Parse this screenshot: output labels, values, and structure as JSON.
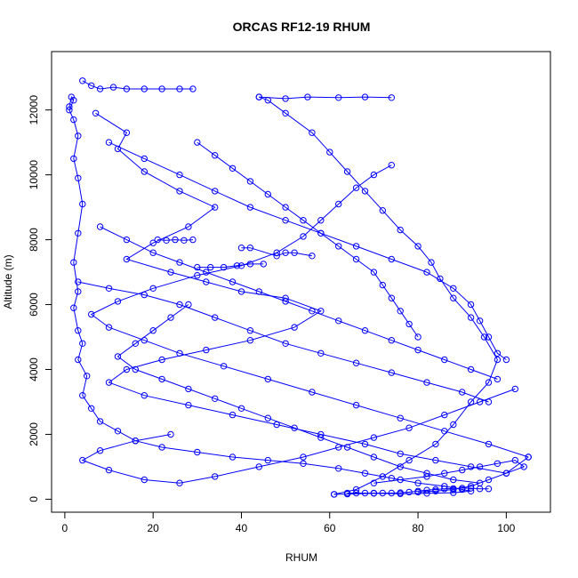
{
  "chart_data": {
    "type": "line",
    "title": "ORCAS RF12-19 RHUM",
    "xlabel": "RHUM",
    "ylabel": "Altitude (m)",
    "xlim": [
      -3,
      110
    ],
    "ylim": [
      -400,
      13800
    ],
    "x_ticks": [
      0,
      20,
      40,
      60,
      80,
      100
    ],
    "y_ticks": [
      0,
      2000,
      4000,
      6000,
      8000,
      10000,
      12000
    ],
    "grid": false,
    "legend": "none",
    "marker": "open-circle",
    "series_color": "#0000ff",
    "series": [
      {
        "values": [
          [
            1,
            12100
          ],
          [
            1.5,
            12400
          ],
          [
            2,
            12300
          ],
          [
            1,
            12000
          ],
          [
            2,
            11700
          ],
          [
            3,
            11200
          ],
          [
            2,
            10500
          ],
          [
            3,
            9900
          ],
          [
            4,
            9100
          ],
          [
            3,
            8200
          ],
          [
            2,
            7300
          ],
          [
            3,
            6400
          ],
          [
            2,
            5900
          ],
          [
            3,
            5200
          ],
          [
            4,
            4800
          ],
          [
            3,
            4300
          ],
          [
            5,
            3800
          ],
          [
            4,
            3200
          ],
          [
            6,
            2800
          ],
          [
            8,
            2400
          ],
          [
            12,
            2100
          ],
          [
            16,
            1800
          ],
          [
            22,
            1600
          ],
          [
            30,
            1450
          ],
          [
            38,
            1300
          ],
          [
            46,
            1200
          ],
          [
            54,
            1100
          ],
          [
            62,
            950
          ],
          [
            68,
            800
          ],
          [
            74,
            650
          ],
          [
            80,
            500
          ],
          [
            86,
            400
          ],
          [
            90,
            300
          ],
          [
            92,
            250
          ],
          [
            88,
            200
          ],
          [
            82,
            180
          ],
          [
            76,
            170
          ],
          [
            70,
            180
          ],
          [
            64,
            160
          ],
          [
            61,
            150
          ]
        ]
      },
      {
        "values": [
          [
            61,
            150
          ],
          [
            66,
            300
          ],
          [
            72,
            700
          ],
          [
            78,
            1200
          ],
          [
            84,
            1700
          ],
          [
            88,
            2300
          ],
          [
            92,
            3000
          ],
          [
            96,
            3600
          ],
          [
            98,
            4300
          ],
          [
            95,
            5000
          ],
          [
            92,
            5600
          ],
          [
            88,
            6200
          ],
          [
            85,
            6800
          ],
          [
            83,
            7300
          ],
          [
            80,
            7800
          ],
          [
            76,
            8300
          ],
          [
            72,
            8900
          ],
          [
            68,
            9500
          ],
          [
            64,
            10100
          ],
          [
            60,
            10700
          ],
          [
            56,
            11300
          ],
          [
            50,
            11900
          ],
          [
            46,
            12300
          ],
          [
            44,
            12400
          ]
        ]
      },
      {
        "values": [
          [
            44,
            12400
          ],
          [
            50,
            12350
          ],
          [
            55,
            12400
          ],
          [
            62,
            12380
          ],
          [
            68,
            12400
          ],
          [
            74,
            12380
          ]
        ]
      },
      {
        "values": [
          [
            4,
            12900
          ],
          [
            6,
            12750
          ],
          [
            8,
            12650
          ],
          [
            11,
            12700
          ],
          [
            14,
            12650
          ],
          [
            18,
            12650
          ],
          [
            22,
            12650
          ],
          [
            26,
            12650
          ],
          [
            29,
            12650
          ]
        ]
      },
      {
        "values": [
          [
            7,
            11900
          ],
          [
            14,
            11300
          ],
          [
            12,
            10800
          ],
          [
            18,
            10100
          ],
          [
            26,
            9500
          ],
          [
            34,
            9000
          ],
          [
            28,
            8400
          ],
          [
            20,
            7900
          ],
          [
            14,
            7400
          ],
          [
            24,
            7000
          ],
          [
            32,
            6700
          ],
          [
            40,
            6400
          ],
          [
            50,
            6200
          ],
          [
            58,
            5800
          ],
          [
            52,
            5300
          ],
          [
            42,
            4900
          ],
          [
            32,
            4600
          ],
          [
            22,
            4300
          ],
          [
            14,
            4000
          ],
          [
            10,
            3600
          ],
          [
            18,
            3200
          ],
          [
            28,
            2900
          ],
          [
            38,
            2600
          ],
          [
            48,
            2300
          ],
          [
            58,
            2000
          ],
          [
            68,
            1700
          ],
          [
            76,
            1400
          ],
          [
            84,
            1200
          ],
          [
            92,
            1000
          ],
          [
            100,
            800
          ],
          [
            105,
            1300
          ]
        ]
      },
      {
        "values": [
          [
            105,
            1300
          ],
          [
            96,
            1700
          ],
          [
            86,
            2100
          ],
          [
            76,
            2500
          ],
          [
            66,
            2900
          ],
          [
            56,
            3300
          ],
          [
            46,
            3700
          ],
          [
            36,
            4100
          ],
          [
            26,
            4500
          ],
          [
            18,
            4900
          ],
          [
            10,
            5300
          ],
          [
            6,
            5700
          ],
          [
            12,
            6100
          ],
          [
            20,
            6500
          ],
          [
            30,
            6900
          ],
          [
            40,
            7200
          ],
          [
            48,
            7600
          ],
          [
            54,
            8100
          ],
          [
            58,
            8600
          ],
          [
            62,
            9100
          ],
          [
            66,
            9600
          ],
          [
            70,
            10000
          ],
          [
            74,
            10300
          ]
        ]
      },
      {
        "values": [
          [
            21,
            8000
          ],
          [
            23,
            7980
          ],
          [
            25,
            8000
          ],
          [
            27,
            7980
          ],
          [
            29,
            8000
          ]
        ]
      },
      {
        "values": [
          [
            30,
            7150
          ],
          [
            33,
            7150
          ],
          [
            36,
            7150
          ],
          [
            39,
            7200
          ],
          [
            42,
            7250
          ],
          [
            45,
            7250
          ]
        ]
      },
      {
        "values": [
          [
            102,
            3400
          ],
          [
            94,
            3000
          ],
          [
            86,
            2600
          ],
          [
            78,
            2200
          ],
          [
            70,
            1900
          ],
          [
            62,
            1600
          ],
          [
            54,
            1300
          ],
          [
            44,
            1000
          ],
          [
            34,
            700
          ],
          [
            26,
            500
          ],
          [
            18,
            600
          ],
          [
            10,
            900
          ],
          [
            4,
            1200
          ],
          [
            8,
            1500
          ],
          [
            16,
            1800
          ],
          [
            24,
            2000
          ]
        ]
      },
      {
        "values": [
          [
            64,
            190
          ],
          [
            66,
            190
          ],
          [
            68,
            190
          ],
          [
            70,
            190
          ],
          [
            72,
            190
          ],
          [
            74,
            190
          ],
          [
            76,
            200
          ],
          [
            78,
            220
          ],
          [
            80,
            250
          ],
          [
            82,
            280
          ],
          [
            84,
            300
          ],
          [
            86,
            320
          ],
          [
            88,
            330
          ],
          [
            90,
            340
          ],
          [
            92,
            340
          ],
          [
            94,
            320
          ],
          [
            96,
            320
          ]
        ]
      },
      {
        "values": [
          [
            70,
            500
          ],
          [
            76,
            600
          ],
          [
            82,
            700
          ],
          [
            86,
            800
          ],
          [
            90,
            900
          ],
          [
            94,
            1000
          ],
          [
            98,
            1100
          ],
          [
            102,
            1200
          ],
          [
            104,
            1000
          ],
          [
            100,
            800
          ],
          [
            96,
            600
          ],
          [
            92,
            400
          ],
          [
            88,
            300
          ],
          [
            84,
            250
          ],
          [
            80,
            220
          ]
        ]
      },
      {
        "values": [
          [
            10,
            11000
          ],
          [
            18,
            10500
          ],
          [
            26,
            10000
          ],
          [
            34,
            9500
          ],
          [
            42,
            9000
          ],
          [
            50,
            8600
          ],
          [
            58,
            8200
          ],
          [
            66,
            7800
          ],
          [
            74,
            7400
          ],
          [
            82,
            7000
          ],
          [
            88,
            6500
          ],
          [
            92,
            6000
          ],
          [
            94,
            5500
          ],
          [
            96,
            5000
          ],
          [
            98,
            4500
          ],
          [
            100,
            4300
          ]
        ]
      },
      {
        "values": [
          [
            3,
            6700
          ],
          [
            10,
            6500
          ],
          [
            18,
            6300
          ],
          [
            26,
            6000
          ],
          [
            34,
            5600
          ],
          [
            42,
            5200
          ],
          [
            50,
            4800
          ],
          [
            58,
            4500
          ],
          [
            66,
            4200
          ],
          [
            74,
            3900
          ],
          [
            82,
            3600
          ],
          [
            90,
            3300
          ],
          [
            96,
            3000
          ]
        ]
      },
      {
        "values": [
          [
            30,
            11000
          ],
          [
            34,
            10600
          ],
          [
            38,
            10200
          ],
          [
            42,
            9800
          ],
          [
            46,
            9400
          ],
          [
            50,
            9000
          ],
          [
            54,
            8600
          ],
          [
            58,
            8200
          ],
          [
            62,
            7800
          ],
          [
            66,
            7400
          ],
          [
            70,
            7000
          ],
          [
            72,
            6600
          ],
          [
            74,
            6200
          ],
          [
            76,
            5800
          ],
          [
            78,
            5400
          ],
          [
            80,
            5000
          ]
        ]
      },
      {
        "values": [
          [
            8,
            8400
          ],
          [
            14,
            8000
          ],
          [
            20,
            7600
          ],
          [
            26,
            7300
          ],
          [
            32,
            7000
          ],
          [
            38,
            6700
          ],
          [
            44,
            6400
          ],
          [
            50,
            6100
          ],
          [
            56,
            5800
          ],
          [
            62,
            5500
          ],
          [
            68,
            5200
          ],
          [
            74,
            4900
          ],
          [
            80,
            4600
          ],
          [
            86,
            4300
          ],
          [
            92,
            4000
          ],
          [
            98,
            3700
          ]
        ]
      },
      {
        "values": [
          [
            40,
            7750
          ],
          [
            42,
            7750
          ],
          [
            48,
            7500
          ],
          [
            50,
            7600
          ],
          [
            52,
            7600
          ],
          [
            56,
            7500
          ]
        ]
      },
      {
        "values": [
          [
            28,
            6000
          ],
          [
            24,
            5600
          ],
          [
            20,
            5200
          ],
          [
            16,
            4800
          ],
          [
            12,
            4400
          ],
          [
            16,
            4000
          ],
          [
            22,
            3700
          ],
          [
            28,
            3400
          ],
          [
            34,
            3100
          ],
          [
            40,
            2800
          ],
          [
            46,
            2500
          ],
          [
            52,
            2200
          ],
          [
            58,
            1900
          ],
          [
            64,
            1600
          ],
          [
            70,
            1300
          ],
          [
            76,
            1000
          ],
          [
            82,
            800
          ],
          [
            88,
            600
          ],
          [
            94,
            500
          ]
        ]
      }
    ]
  }
}
